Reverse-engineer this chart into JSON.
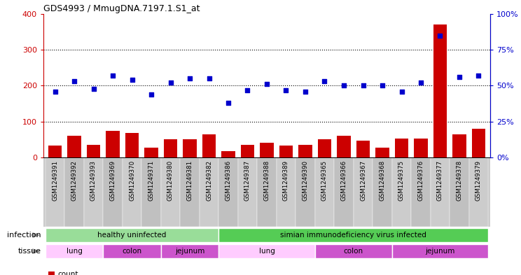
{
  "title": "GDS4993 / MmugDNA.7197.1.S1_at",
  "samples": [
    "GSM1249391",
    "GSM1249392",
    "GSM1249393",
    "GSM1249369",
    "GSM1249370",
    "GSM1249371",
    "GSM1249380",
    "GSM1249381",
    "GSM1249382",
    "GSM1249386",
    "GSM1249387",
    "GSM1249388",
    "GSM1249389",
    "GSM1249390",
    "GSM1249365",
    "GSM1249366",
    "GSM1249367",
    "GSM1249368",
    "GSM1249375",
    "GSM1249376",
    "GSM1249377",
    "GSM1249378",
    "GSM1249379"
  ],
  "counts": [
    33,
    60,
    35,
    75,
    68,
    28,
    50,
    50,
    65,
    18,
    35,
    40,
    33,
    35,
    50,
    60,
    47,
    28,
    53,
    53,
    370,
    65,
    80
  ],
  "percentiles": [
    46,
    53,
    48,
    57,
    54,
    44,
    52,
    55,
    55,
    38,
    47,
    51,
    47,
    46,
    53,
    50,
    50,
    50,
    46,
    52,
    85,
    56,
    57
  ],
  "bar_color": "#cc0000",
  "dot_color": "#0000cc",
  "ylim_left": [
    0,
    400
  ],
  "ylim_right": [
    0,
    100
  ],
  "yticks_left": [
    0,
    100,
    200,
    300,
    400
  ],
  "yticks_right": [
    0,
    25,
    50,
    75,
    100
  ],
  "inf_group1_color": "#aaddaa",
  "inf_group2_color": "#55dd55",
  "tissue_lung_color": "#ffccff",
  "tissue_colon_color": "#dd66dd",
  "tissue_jejunum_color": "#dd66dd",
  "tissue_lung_infected_color": "#ffccff",
  "tissue_colon_infected_color": "#dd66dd",
  "tissue_jejunum_infected_color": "#dd66dd",
  "xtick_bg": "#cccccc"
}
